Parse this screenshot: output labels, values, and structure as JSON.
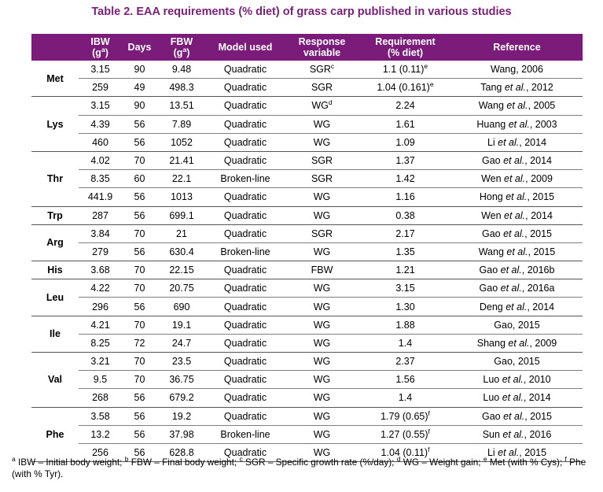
{
  "title": "Table 2. EAA requirements (% diet) of grass carp published in various studies",
  "headers": {
    "ibw": "IBW",
    "ibw_unit": "(g",
    "ibw_sup": "a",
    "ibw_close": ")",
    "days": "Days",
    "fbw": "FBW",
    "fbw_unit": "(g",
    "fbw_sup": "a",
    "fbw_close": ")",
    "model": "Model used",
    "response1": "Response",
    "response2": "variable",
    "req1": "Requirement",
    "req2": "(% diet)",
    "reference": "Reference"
  },
  "groups": [
    {
      "aa": "Met",
      "rows": [
        {
          "ibw": "3.15",
          "days": "90",
          "fbw": "9.48",
          "model": "Quadratic",
          "resp": "SGR",
          "resp_sup": "c",
          "req": "1.1 (0.11)",
          "req_sup": "e",
          "ref_a": "Wang, 2006",
          "ref_i": "",
          "ref_b": ""
        },
        {
          "ibw": "259",
          "days": "49",
          "fbw": "498.3",
          "model": "Quadratic",
          "resp": "SGR",
          "resp_sup": "",
          "req": "1.04 (0.161)",
          "req_sup": "e",
          "ref_a": "Tang ",
          "ref_i": "et al.",
          "ref_b": ", 2012"
        }
      ]
    },
    {
      "aa": "Lys",
      "rows": [
        {
          "ibw": "3.15",
          "days": "90",
          "fbw": "13.51",
          "model": "Quadratic",
          "resp": "WG",
          "resp_sup": "d",
          "req": "2.24",
          "req_sup": "",
          "ref_a": "Wang ",
          "ref_i": "et al.",
          "ref_b": ", 2005"
        },
        {
          "ibw": "4.39",
          "days": "56",
          "fbw": "7.89",
          "model": "Quadratic",
          "resp": "WG",
          "resp_sup": "",
          "req": "1.61",
          "req_sup": "",
          "ref_a": "Huang ",
          "ref_i": "et al.",
          "ref_b": ", 2003"
        },
        {
          "ibw": "460",
          "days": "56",
          "fbw": "1052",
          "model": "Quadratic",
          "resp": "WG",
          "resp_sup": "",
          "req": "1.09",
          "req_sup": "",
          "ref_a": "Li ",
          "ref_i": "et al.",
          "ref_b": ", 2014"
        }
      ]
    },
    {
      "aa": "Thr",
      "rows": [
        {
          "ibw": "4.02",
          "days": "70",
          "fbw": "21.41",
          "model": "Quadratic",
          "resp": "SGR",
          "resp_sup": "",
          "req": "1.37",
          "req_sup": "",
          "ref_a": "Gao ",
          "ref_i": "et al.",
          "ref_b": ", 2014"
        },
        {
          "ibw": "8.35",
          "days": "60",
          "fbw": "22.1",
          "model": "Broken-line",
          "resp": "SGR",
          "resp_sup": "",
          "req": "1.42",
          "req_sup": "",
          "ref_a": "Wen ",
          "ref_i": "et al.",
          "ref_b": ", 2009"
        },
        {
          "ibw": "441.9",
          "days": "56",
          "fbw": "1013",
          "model": "Quadratic",
          "resp": "WG",
          "resp_sup": "",
          "req": "1.16",
          "req_sup": "",
          "ref_a": "Hong ",
          "ref_i": "et al.",
          "ref_b": ", 2015"
        }
      ]
    },
    {
      "aa": "Trp",
      "rows": [
        {
          "ibw": "287",
          "days": "56",
          "fbw": "699.1",
          "model": "Quadratic",
          "resp": "WG",
          "resp_sup": "",
          "req": "0.38",
          "req_sup": "",
          "ref_a": "Wen ",
          "ref_i": "et al.",
          "ref_b": ", 2014"
        }
      ]
    },
    {
      "aa": "Arg",
      "rows": [
        {
          "ibw": "3.84",
          "days": "70",
          "fbw": "21",
          "model": "Quadratic",
          "resp": "SGR",
          "resp_sup": "",
          "req": "2.17",
          "req_sup": "",
          "ref_a": "Gao ",
          "ref_i": "et al.",
          "ref_b": ", 2015"
        },
        {
          "ibw": "279",
          "days": "56",
          "fbw": "630.4",
          "model": "Broken-line",
          "resp": "WG",
          "resp_sup": "",
          "req": "1.35",
          "req_sup": "",
          "ref_a": "Wang ",
          "ref_i": "et al.",
          "ref_b": ", 2015"
        }
      ]
    },
    {
      "aa": "His",
      "rows": [
        {
          "ibw": "3.68",
          "days": "70",
          "fbw": "22.15",
          "model": "Quadratic",
          "resp": "FBW",
          "resp_sup": "",
          "req": "1.21",
          "req_sup": "",
          "ref_a": "Gao ",
          "ref_i": "et al.",
          "ref_b": ", 2016b"
        }
      ]
    },
    {
      "aa": "Leu",
      "rows": [
        {
          "ibw": "4.22",
          "days": "70",
          "fbw": "20.75",
          "model": "Quadratic",
          "resp": "WG",
          "resp_sup": "",
          "req": "3.15",
          "req_sup": "",
          "ref_a": "Gao ",
          "ref_i": "et al.",
          "ref_b": ", 2016a"
        },
        {
          "ibw": "296",
          "days": "56",
          "fbw": "690",
          "model": "Quadratic",
          "resp": "WG",
          "resp_sup": "",
          "req": "1.30",
          "req_sup": "",
          "ref_a": "Deng ",
          "ref_i": "et al.",
          "ref_b": ", 2014"
        }
      ]
    },
    {
      "aa": "Ile",
      "rows": [
        {
          "ibw": "4.21",
          "days": "70",
          "fbw": "19.1",
          "model": "Quadratic",
          "resp": "WG",
          "resp_sup": "",
          "req": "1.88",
          "req_sup": "",
          "ref_a": "Gao, 2015",
          "ref_i": "",
          "ref_b": ""
        },
        {
          "ibw": "8.25",
          "days": "72",
          "fbw": "24.7",
          "model": "Quadratic",
          "resp": "WG",
          "resp_sup": "",
          "req": "1.4",
          "req_sup": "",
          "ref_a": "Shang ",
          "ref_i": "et al.",
          "ref_b": ", 2009"
        }
      ]
    },
    {
      "aa": "Val",
      "rows": [
        {
          "ibw": "3.21",
          "days": "70",
          "fbw": "23.5",
          "model": "Quadratic",
          "resp": "WG",
          "resp_sup": "",
          "req": "2.37",
          "req_sup": "",
          "ref_a": "Gao, 2015",
          "ref_i": "",
          "ref_b": ""
        },
        {
          "ibw": "9.5",
          "days": "70",
          "fbw": "36.75",
          "model": "Quadratic",
          "resp": "WG",
          "resp_sup": "",
          "req": "1.56",
          "req_sup": "",
          "ref_a": "Luo ",
          "ref_i": "et al.",
          "ref_b": ", 2010"
        },
        {
          "ibw": "268",
          "days": "56",
          "fbw": "679.2",
          "model": "Quadratic",
          "resp": "WG",
          "resp_sup": "",
          "req": "1.4",
          "req_sup": "",
          "ref_a": "Luo ",
          "ref_i": "et al.",
          "ref_b": ", 2014"
        }
      ]
    },
    {
      "aa": "Phe",
      "rows": [
        {
          "ibw": "3.58",
          "days": "56",
          "fbw": "19.2",
          "model": "Quadratic",
          "resp": "WG",
          "resp_sup": "",
          "req": "1.79 (0.65)",
          "req_sup": "f",
          "ref_a": "Gao ",
          "ref_i": "et al.",
          "ref_b": ", 2015"
        },
        {
          "ibw": "13.2",
          "days": "56",
          "fbw": "37.98",
          "model": "Broken-line",
          "resp": "WG",
          "resp_sup": "",
          "req": "1.27 (0.55)",
          "req_sup": "f",
          "ref_a": "Sun ",
          "ref_i": "et al.",
          "ref_b": ", 2016"
        },
        {
          "ibw": "256",
          "days": "56",
          "fbw": "628.8",
          "model": "Quadratic",
          "resp": "WG",
          "resp_sup": "",
          "req": "1.04 (0.11)",
          "req_sup": "f",
          "ref_a": "Li ",
          "ref_i": "et al.",
          "ref_b": ", 2015"
        }
      ]
    }
  ],
  "footnotes": [
    {
      "sup": "a",
      "text": " IBW – Initial body weight; "
    },
    {
      "sup": "b",
      "text": " FBW – Final body weight; "
    },
    {
      "sup": "c",
      "text": " SGR – Specific growth rate (%/day); "
    },
    {
      "sup": "d",
      "text": " WG – Weight gain; "
    },
    {
      "sup": "e",
      "text": " Met (with % Cys); "
    },
    {
      "sup": "f",
      "text": " Phe (with % Tyr)."
    }
  ]
}
